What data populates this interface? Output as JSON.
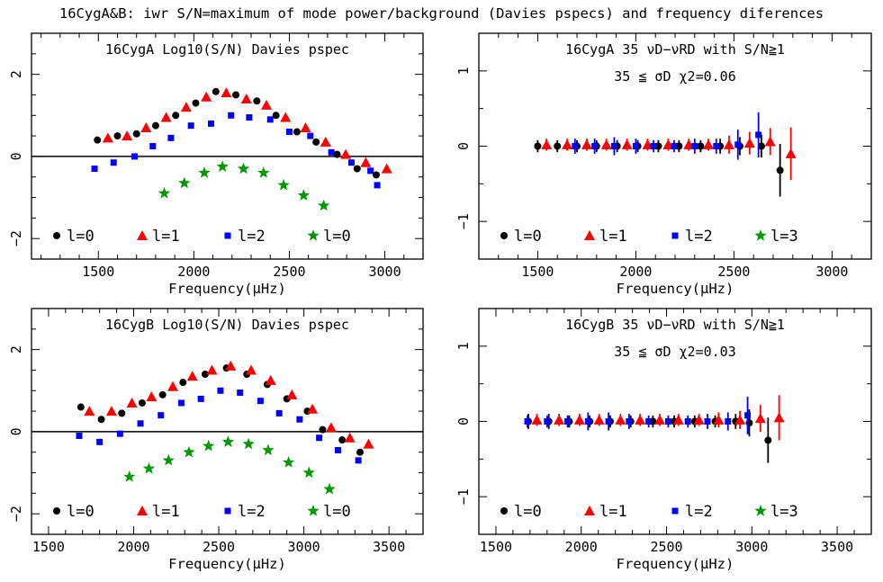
{
  "suptitle": "16CygA&B: iwr S/N=maximum of mode power/background (Davies pspecs) and frequency diferences",
  "colors": {
    "l0": "#000000",
    "l1": "#ff0000",
    "l2": "#0000ff",
    "l3": "#009900",
    "zero_line": "#000000"
  },
  "chart_data": [
    {
      "id": "A-sn",
      "type": "scatter",
      "title": "16CygA Log10(S/N) Davies pspec",
      "xlabel": "Frequency(μHz)",
      "ylabel": "",
      "xlim": [
        1150,
        3200
      ],
      "ylim": [
        -2.5,
        3.0
      ],
      "xticks": [
        1500,
        2000,
        2500,
        3000
      ],
      "yticks": [
        -2,
        0,
        2
      ],
      "zero_line": true,
      "legend": [
        {
          "marker": "circle",
          "color": "l0",
          "label": "l=0"
        },
        {
          "marker": "triangle",
          "color": "l1",
          "label": "l=1"
        },
        {
          "marker": "square",
          "color": "l2",
          "label": "l=2"
        },
        {
          "marker": "star",
          "color": "l3",
          "label": "l=0"
        }
      ],
      "series": [
        {
          "name": "l=0",
          "marker": "circle",
          "color": "l0",
          "points": [
            [
              1495,
              0.4
            ],
            [
              1600,
              0.5
            ],
            [
              1700,
              0.55
            ],
            [
              1800,
              0.75
            ],
            [
              1905,
              1.0
            ],
            [
              2010,
              1.3
            ],
            [
              2115,
              1.58
            ],
            [
              2220,
              1.5
            ],
            [
              2330,
              1.35
            ],
            [
              2430,
              1.0
            ],
            [
              2540,
              0.6
            ],
            [
              2640,
              0.35
            ],
            [
              2750,
              0.05
            ],
            [
              2855,
              -0.3
            ],
            [
              2955,
              -0.45
            ]
          ]
        },
        {
          "name": "l=1",
          "marker": "triangle",
          "color": "l1",
          "points": [
            [
              1550,
              0.45
            ],
            [
              1650,
              0.5
            ],
            [
              1750,
              0.7
            ],
            [
              1855,
              0.95
            ],
            [
              1960,
              1.2
            ],
            [
              2065,
              1.45
            ],
            [
              2170,
              1.55
            ],
            [
              2275,
              1.4
            ],
            [
              2380,
              1.25
            ],
            [
              2480,
              0.95
            ],
            [
              2585,
              0.7
            ],
            [
              2690,
              0.35
            ],
            [
              2795,
              0.05
            ],
            [
              2900,
              -0.15
            ],
            [
              3010,
              -0.3
            ]
          ]
        },
        {
          "name": "l=2",
          "marker": "square",
          "color": "l2",
          "points": [
            [
              1480,
              -0.3
            ],
            [
              1580,
              -0.15
            ],
            [
              1690,
              0.0
            ],
            [
              1785,
              0.25
            ],
            [
              1880,
              0.45
            ],
            [
              1985,
              0.75
            ],
            [
              2090,
              0.8
            ],
            [
              2195,
              1.0
            ],
            [
              2290,
              0.95
            ],
            [
              2400,
              0.9
            ],
            [
              2500,
              0.6
            ],
            [
              2610,
              0.5
            ],
            [
              2720,
              0.1
            ],
            [
              2825,
              -0.15
            ],
            [
              2925,
              -0.35
            ],
            [
              2960,
              -0.7
            ]
          ]
        },
        {
          "name": "l=0",
          "marker": "star",
          "color": "l3",
          "points": [
            [
              1845,
              -0.9
            ],
            [
              1950,
              -0.65
            ],
            [
              2055,
              -0.4
            ],
            [
              2150,
              -0.25
            ],
            [
              2260,
              -0.3
            ],
            [
              2365,
              -0.4
            ],
            [
              2470,
              -0.7
            ],
            [
              2575,
              -0.95
            ],
            [
              2680,
              -1.2
            ]
          ]
        }
      ]
    },
    {
      "id": "A-diff",
      "type": "scatter",
      "title": "16CygA  35 νD−νRD with S/N≧1",
      "subtitle": "35 ≦ σD   χ2=0.06",
      "xlabel": "Frequency(μHz)",
      "ylabel": "",
      "xlim": [
        1200,
        3200
      ],
      "ylim": [
        -1.5,
        1.5
      ],
      "xticks": [
        1500,
        2000,
        2500,
        3000
      ],
      "yticks": [
        -1,
        0,
        1
      ],
      "zero_line": false,
      "legend": [
        {
          "marker": "circle",
          "color": "l0",
          "label": "l=0"
        },
        {
          "marker": "triangle",
          "color": "l1",
          "label": "l=1"
        },
        {
          "marker": "square",
          "color": "l2",
          "label": "l=2"
        },
        {
          "marker": "star",
          "color": "l3",
          "label": "l=3"
        }
      ],
      "series": [
        {
          "name": "l=0",
          "marker": "circle",
          "color": "l0",
          "points": [
            [
              1500,
              0,
              0.08
            ],
            [
              1600,
              0,
              0.08
            ],
            [
              1700,
              0,
              0.08
            ],
            [
              1800,
              0,
              0.08
            ],
            [
              1905,
              0,
              0.08
            ],
            [
              2010,
              0,
              0.08
            ],
            [
              2115,
              0,
              0.08
            ],
            [
              2220,
              0,
              0.08
            ],
            [
              2330,
              0,
              0.08
            ],
            [
              2430,
              0,
              0.1
            ],
            [
              2530,
              0,
              0.12
            ],
            [
              2640,
              0,
              0.15
            ],
            [
              2735,
              -0.32,
              0.35
            ]
          ]
        },
        {
          "name": "l=1",
          "marker": "triangle",
          "color": "l1",
          "points": [
            [
              1545,
              0.02,
              0.08
            ],
            [
              1650,
              0.02,
              0.08
            ],
            [
              1750,
              0.02,
              0.08
            ],
            [
              1850,
              0.02,
              0.08
            ],
            [
              1955,
              0.02,
              0.08
            ],
            [
              2060,
              0.02,
              0.08
            ],
            [
              2165,
              0.02,
              0.08
            ],
            [
              2270,
              0.02,
              0.08
            ],
            [
              2370,
              0.02,
              0.08
            ],
            [
              2475,
              0.02,
              0.12
            ],
            [
              2580,
              0.04,
              0.15
            ],
            [
              2685,
              0.06,
              0.18
            ],
            [
              2790,
              -0.1,
              0.35
            ]
          ]
        },
        {
          "name": "l=2",
          "marker": "square",
          "color": "l2",
          "points": [
            [
              1690,
              0,
              0.1
            ],
            [
              1790,
              0,
              0.1
            ],
            [
              1890,
              0,
              0.12
            ],
            [
              2000,
              0,
              0.1
            ],
            [
              2090,
              0,
              0.08
            ],
            [
              2195,
              0,
              0.08
            ],
            [
              2300,
              0,
              0.1
            ],
            [
              2410,
              0,
              0.1
            ],
            [
              2520,
              0.02,
              0.2
            ],
            [
              2625,
              0.15,
              0.3
            ]
          ]
        }
      ]
    },
    {
      "id": "B-sn",
      "type": "scatter",
      "title": "16CygB Log10(S/N) Davies pspec",
      "xlabel": "Frequency(μHz)",
      "ylabel": "",
      "xlim": [
        1400,
        3700
      ],
      "ylim": [
        -2.5,
        3.0
      ],
      "xticks": [
        1500,
        2000,
        2500,
        3000,
        3500
      ],
      "yticks": [
        -2,
        0,
        2
      ],
      "zero_line": true,
      "legend": [
        {
          "marker": "circle",
          "color": "l0",
          "label": "l=0"
        },
        {
          "marker": "triangle",
          "color": "l1",
          "label": "l=1"
        },
        {
          "marker": "square",
          "color": "l2",
          "label": "l=2"
        },
        {
          "marker": "star",
          "color": "l3",
          "label": "l=0"
        }
      ],
      "series": [
        {
          "name": "l=0",
          "marker": "circle",
          "color": "l0",
          "points": [
            [
              1690,
              0.6
            ],
            [
              1810,
              0.3
            ],
            [
              1930,
              0.45
            ],
            [
              2050,
              0.7
            ],
            [
              2170,
              0.9
            ],
            [
              2290,
              1.2
            ],
            [
              2420,
              1.4
            ],
            [
              2545,
              1.55
            ],
            [
              2665,
              1.4
            ],
            [
              2785,
              1.15
            ],
            [
              2900,
              0.8
            ],
            [
              3020,
              0.5
            ],
            [
              3110,
              0.05
            ],
            [
              3225,
              -0.2
            ],
            [
              3330,
              -0.5
            ]
          ]
        },
        {
          "name": "l=1",
          "marker": "triangle",
          "color": "l1",
          "points": [
            [
              1740,
              0.5
            ],
            [
              1870,
              0.5
            ],
            [
              1990,
              0.7
            ],
            [
              2105,
              0.85
            ],
            [
              2230,
              1.1
            ],
            [
              2345,
              1.35
            ],
            [
              2460,
              1.5
            ],
            [
              2570,
              1.6
            ],
            [
              2690,
              1.5
            ],
            [
              2805,
              1.25
            ],
            [
              2930,
              0.9
            ],
            [
              3050,
              0.55
            ],
            [
              3160,
              0.1
            ],
            [
              3270,
              -0.15
            ],
            [
              3380,
              -0.3
            ]
          ]
        },
        {
          "name": "l=2",
          "marker": "square",
          "color": "l2",
          "points": [
            [
              1680,
              -0.1
            ],
            [
              1800,
              -0.25
            ],
            [
              1920,
              -0.05
            ],
            [
              2040,
              0.2
            ],
            [
              2160,
              0.4
            ],
            [
              2280,
              0.7
            ],
            [
              2395,
              0.8
            ],
            [
              2510,
              1.0
            ],
            [
              2625,
              0.95
            ],
            [
              2745,
              0.75
            ],
            [
              2855,
              0.45
            ],
            [
              2975,
              0.3
            ],
            [
              3090,
              -0.15
            ],
            [
              3200,
              -0.45
            ],
            [
              3320,
              -0.7
            ]
          ]
        },
        {
          "name": "l=0",
          "marker": "star",
          "color": "l3",
          "points": [
            [
              1975,
              -1.1
            ],
            [
              2090,
              -0.9
            ],
            [
              2205,
              -0.7
            ],
            [
              2325,
              -0.5
            ],
            [
              2440,
              -0.35
            ],
            [
              2555,
              -0.25
            ],
            [
              2675,
              -0.3
            ],
            [
              2790,
              -0.45
            ],
            [
              2910,
              -0.75
            ],
            [
              3030,
              -1.0
            ],
            [
              3150,
              -1.4
            ]
          ]
        }
      ]
    },
    {
      "id": "B-diff",
      "type": "scatter",
      "title": "16CygB  35 νD−νRD with S/N≧1",
      "subtitle": "35 ≦ σD   χ2=0.03",
      "xlabel": "Frequency(μHz)",
      "ylabel": "",
      "xlim": [
        1400,
        3700
      ],
      "ylim": [
        -1.5,
        1.5
      ],
      "xticks": [
        1500,
        2000,
        2500,
        3000,
        3500
      ],
      "yticks": [
        -1,
        0,
        1
      ],
      "zero_line": false,
      "legend": [
        {
          "marker": "circle",
          "color": "l0",
          "label": "l=0"
        },
        {
          "marker": "triangle",
          "color": "l1",
          "label": "l=1"
        },
        {
          "marker": "square",
          "color": "l2",
          "label": "l=2"
        },
        {
          "marker": "star",
          "color": "l3",
          "label": "l=3"
        }
      ],
      "series": [
        {
          "name": "l=0",
          "marker": "circle",
          "color": "l0",
          "points": [
            [
              1690,
              0,
              0.1
            ],
            [
              1810,
              0,
              0.1
            ],
            [
              1930,
              0,
              0.08
            ],
            [
              2050,
              0,
              0.08
            ],
            [
              2170,
              0,
              0.08
            ],
            [
              2290,
              0,
              0.08
            ],
            [
              2420,
              0,
              0.08
            ],
            [
              2545,
              0,
              0.08
            ],
            [
              2665,
              0,
              0.08
            ],
            [
              2785,
              0,
              0.08
            ],
            [
              2905,
              0,
              0.1
            ],
            [
              2985,
              -0.02,
              0.18
            ],
            [
              3095,
              -0.25,
              0.3
            ]
          ]
        },
        {
          "name": "l=1",
          "marker": "triangle",
          "color": "l1",
          "points": [
            [
              1740,
              0.02,
              0.08
            ],
            [
              1870,
              0.02,
              0.08
            ],
            [
              1990,
              0.02,
              0.08
            ],
            [
              2105,
              0.02,
              0.08
            ],
            [
              2230,
              0.02,
              0.08
            ],
            [
              2345,
              0.02,
              0.08
            ],
            [
              2460,
              0.02,
              0.08
            ],
            [
              2570,
              0.02,
              0.08
            ],
            [
              2690,
              0.02,
              0.08
            ],
            [
              2805,
              0.02,
              0.1
            ],
            [
              2930,
              0.02,
              0.12
            ],
            [
              3050,
              0.04,
              0.18
            ],
            [
              3160,
              0.05,
              0.3
            ]
          ]
        },
        {
          "name": "l=2",
          "marker": "square",
          "color": "l2",
          "points": [
            [
              1685,
              0,
              0.08
            ],
            [
              1800,
              0,
              0.08
            ],
            [
              1920,
              0,
              0.08
            ],
            [
              2040,
              0,
              0.12
            ],
            [
              2160,
              0,
              0.12
            ],
            [
              2280,
              0,
              0.1
            ],
            [
              2395,
              0,
              0.08
            ],
            [
              2510,
              0,
              0.08
            ],
            [
              2625,
              0,
              0.08
            ],
            [
              2740,
              0,
              0.1
            ],
            [
              2860,
              0,
              0.12
            ],
            [
              2975,
              0.08,
              0.25
            ]
          ]
        }
      ]
    }
  ]
}
